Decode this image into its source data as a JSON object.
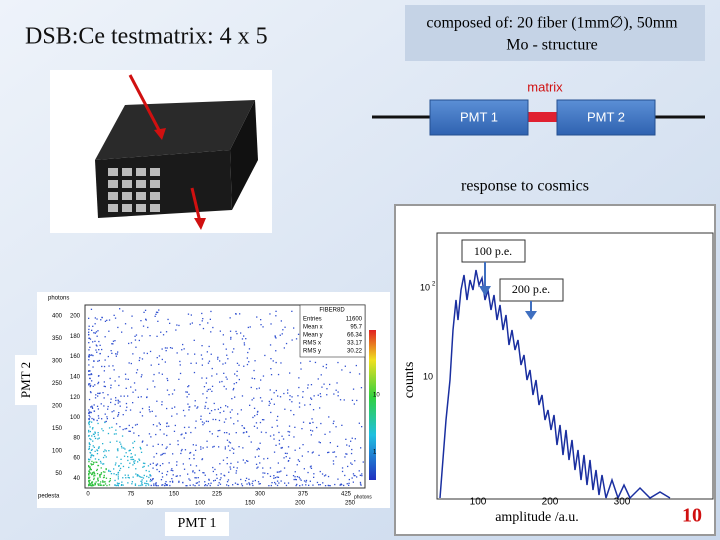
{
  "title": "DSB:Ce testmatrix:  4 x 5",
  "composition": [
    "composed of: 20 fiber (1mm∅), 50mm",
    "Mo - structure"
  ],
  "diagram": {
    "label": "matrix",
    "left": "PMT 1",
    "right": "PMT 2"
  },
  "histogram": {
    "title": "response to cosmics",
    "annotations": [
      "100 p.e.",
      "200 p.e."
    ],
    "ylabel": "counts",
    "xlabel": "amplitude /a.u.",
    "xticks": [
      "100",
      "200",
      "300"
    ],
    "yticks": [
      "10",
      "2",
      "10"
    ]
  },
  "scatter": {
    "ylabel": "PMT 2",
    "xlabel": "PMT 1",
    "axis_title": "photons",
    "x_axis_title": "photons",
    "corner_label": "pedesta",
    "stats_title": "FIBER8D",
    "stats": [
      [
        "Entries",
        "11600"
      ],
      [
        "Mean x",
        "95.7"
      ],
      [
        "Mean y",
        "66.34"
      ],
      [
        "RMS x",
        "33.17"
      ],
      [
        "RMS y",
        "30.22"
      ]
    ],
    "yticks_outer": [
      "400",
      "350",
      "300",
      "250",
      "200",
      "150",
      "100",
      "50"
    ],
    "yticks_inner": [
      "200",
      "180",
      "160",
      "140",
      "120",
      "100",
      "80",
      "60",
      "40"
    ],
    "xticks_inner": [
      "0",
      "75",
      "150",
      "225",
      "300",
      "375",
      "425"
    ],
    "xticks_outer": [
      "50",
      "100",
      "150",
      "200",
      "250"
    ],
    "colorbar_ticks": [
      "10",
      "1"
    ]
  },
  "page_number": "10"
}
